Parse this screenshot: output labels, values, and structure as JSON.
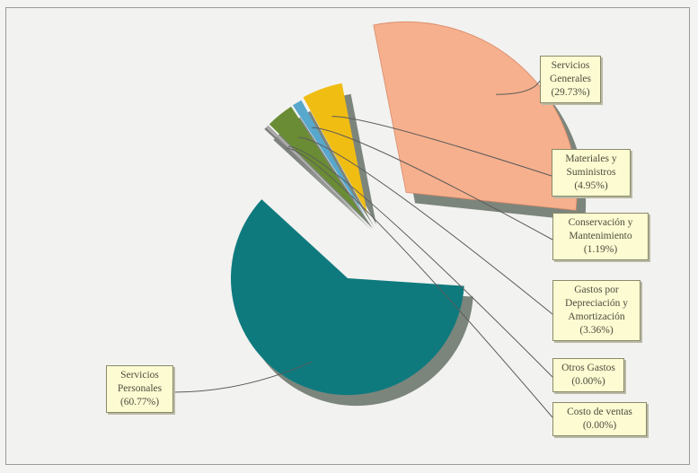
{
  "chart_data": {
    "type": "pie",
    "title": "",
    "colors": {
      "servicios_personales": "#0f7a7e",
      "servicios_generales": "#f6b08d",
      "materiales": "#f0bd12",
      "conservacion": "#58a7cc",
      "depreciacion": "#6a8c34",
      "otros": "#a6a6a6",
      "costo": "#808080",
      "shadow": "#7c857c",
      "leader": "#5b5b5b"
    },
    "slices": [
      {
        "name": "Servicios Generales",
        "value": 29.73,
        "color": "#f6b08d",
        "lines": [
          "Servicios",
          "Generales",
          "(29.73%)"
        ]
      },
      {
        "name": "Materiales y Suministros",
        "value": 4.95,
        "color": "#f0bd12",
        "lines": [
          "Materiales y",
          "Suministros",
          "(4.95%)"
        ]
      },
      {
        "name": "Conservación y Mantenimiento",
        "value": 1.19,
        "color": "#58a7cc",
        "lines": [
          "Conservación y",
          "Mantenimiento",
          "(1.19%)"
        ]
      },
      {
        "name": "Gastos por Depreciación y Amortización",
        "value": 3.36,
        "color": "#6a8c34",
        "lines": [
          "Gastos por",
          "Depreciación y",
          "Amortización",
          "(3.36%)"
        ]
      },
      {
        "name": "Otros Gastos",
        "value": 0.0,
        "color": "#a6a6a6",
        "lines": [
          "Otros Gastos",
          "(0.00%)"
        ]
      },
      {
        "name": "Costo de ventas",
        "value": 0.0,
        "color": "#808080",
        "lines": [
          "Costo de ventas",
          "(0.00%)"
        ]
      },
      {
        "name": "Servicios Personales",
        "value": 60.77,
        "color": "#0f7a7e",
        "lines": [
          "Servicios",
          "Personales",
          "(60.77%)"
        ]
      }
    ]
  }
}
